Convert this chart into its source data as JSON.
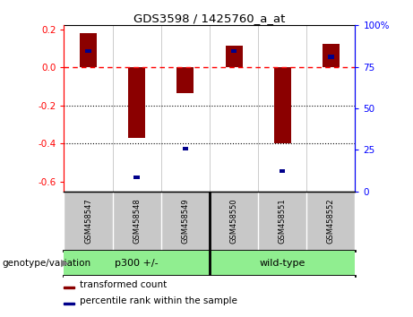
{
  "title": "GDS3598 / 1425760_a_at",
  "samples": [
    "GSM458547",
    "GSM458548",
    "GSM458549",
    "GSM458550",
    "GSM458551",
    "GSM458552"
  ],
  "red_bars": [
    0.18,
    -0.37,
    -0.135,
    0.115,
    -0.4,
    0.125
  ],
  "blue_markers_left": [
    0.085,
    -0.575,
    -0.425,
    0.085,
    -0.545,
    0.055
  ],
  "group_labels": [
    "p300 +/-",
    "wild-type"
  ],
  "group_split": 3,
  "ylim_left": [
    -0.65,
    0.22
  ],
  "ylim_right": [
    0,
    100
  ],
  "yticks_left": [
    -0.6,
    -0.4,
    -0.2,
    0.0,
    0.2
  ],
  "yticks_right": [
    0,
    25,
    50,
    75,
    100
  ],
  "red_color": "#8B0000",
  "blue_color": "#00008B",
  "bar_width": 0.35,
  "dotted_lines": [
    -0.2,
    -0.4
  ],
  "plot_bg": "#ffffff",
  "label_bg": "#c8c8c8",
  "group_bg": "#90EE90",
  "legend_bg": "#f0f0f0",
  "genotype_label": "genotype/variation",
  "legend_items": [
    "transformed count",
    "percentile rank within the sample"
  ]
}
